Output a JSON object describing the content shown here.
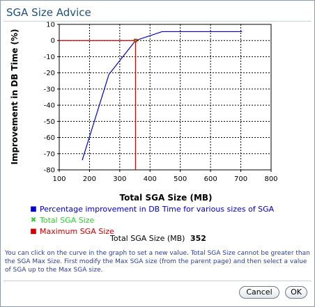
{
  "dialog": {
    "title": "SGA Size Advice",
    "help_text": "You can click on the curve in the graph to set a new value. Total SGA Size cannot be greater than the SGA Max Size. First modify the Max SGA size (from the parent page) and then select a value of SGA up to the Max SGA size.",
    "cancel_label": "Cancel",
    "ok_label": "OK"
  },
  "readout": {
    "label": "Total SGA Size (MB)",
    "value": "352"
  },
  "legend": {
    "items": [
      {
        "marker": "■",
        "label": "Percentage improvement in DB Time for various sizes of SGA",
        "color": "#0000cc"
      },
      {
        "marker": "✖",
        "label": "Total SGA Size",
        "color": "#33cc33"
      },
      {
        "marker": "■",
        "label": "Maximum SGA Size",
        "color": "#cc0000"
      }
    ]
  },
  "chart_data": {
    "type": "line",
    "xlabel": "Total SGA Size (MB)",
    "ylabel": "Improvement in DB Time (%)",
    "xlim": [
      100,
      800
    ],
    "ylim": [
      -80,
      10
    ],
    "x_ticks": [
      "100",
      "200",
      "300",
      "400",
      "500",
      "600",
      "700",
      "800"
    ],
    "y_ticks": [
      "10",
      "0",
      "-10",
      "-20",
      "-30",
      "-40",
      "-50",
      "-60",
      "-70",
      "-80"
    ],
    "grid": true,
    "series": [
      {
        "color": "#0000cc",
        "x": [
          176,
          264,
          352,
          440,
          528,
          616,
          704
        ],
        "y": [
          -74,
          -21,
          0,
          5.5,
          5.5,
          5.5,
          5.5
        ]
      }
    ],
    "current_size": {
      "x": 352,
      "y": 0,
      "color": "#33cc33"
    },
    "maximum_size": {
      "x": 352,
      "color": "#cc0000"
    }
  }
}
